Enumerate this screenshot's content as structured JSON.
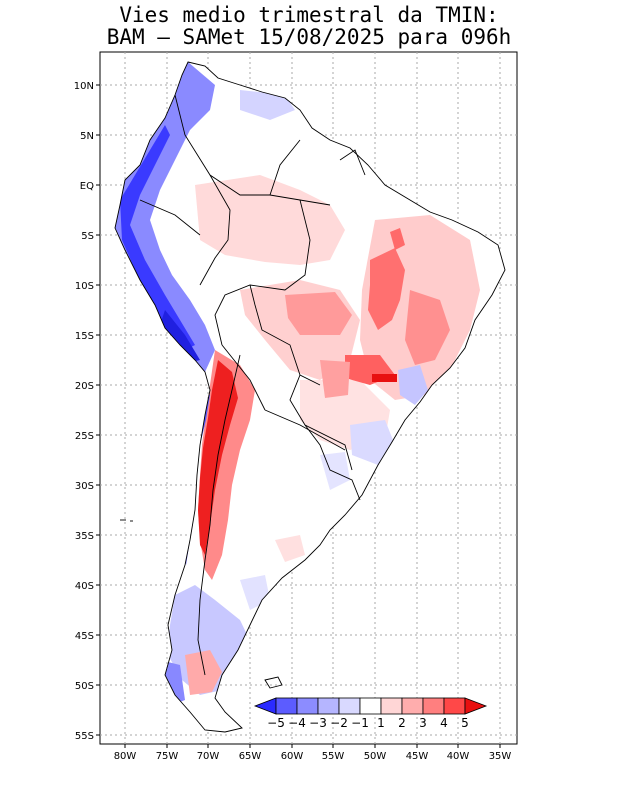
{
  "title": {
    "line1": "Vies medio trimestral da TMIN:",
    "line2": "BAM – SAMet 15/08/2025  para 096h"
  },
  "axes": {
    "lat_ticks": [
      "10N",
      "5N",
      "EQ",
      "5S",
      "10S",
      "15S",
      "20S",
      "25S",
      "30S",
      "35S",
      "40S",
      "45S",
      "50S",
      "55S"
    ],
    "lon_ticks": [
      "80W",
      "75W",
      "70W",
      "65W",
      "60W",
      "55W",
      "50W",
      "45W",
      "40W",
      "35W"
    ]
  },
  "colorbar": {
    "labels": [
      "−5",
      "−4",
      "−3",
      "−2",
      "−1",
      "1",
      "2",
      "3",
      "4",
      "5"
    ],
    "colors": [
      "#2b2bff",
      "#5c5cff",
      "#8c8cff",
      "#b5b5ff",
      "#d9d9ff",
      "#ffffff",
      "#ffd6d6",
      "#ffadad",
      "#ff7f7f",
      "#ff4848",
      "#e81010"
    ]
  }
}
